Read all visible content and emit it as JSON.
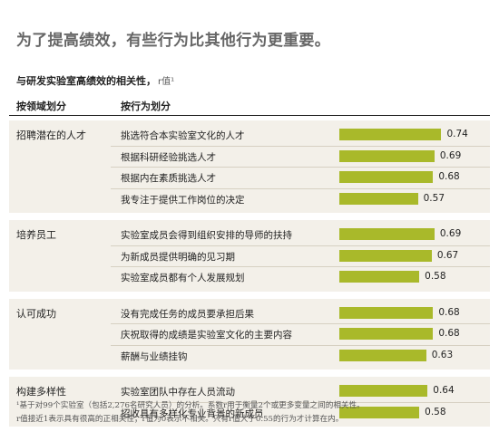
{
  "header": {
    "title": "为了提高绩效，有些行为比其他行为更重要。",
    "subtitle": "与研发实验室高绩效的相关性，",
    "subtitle_r": "r值¹"
  },
  "columns": {
    "domain_label": "按领域划分",
    "behavior_label": "按行为划分"
  },
  "chart_data": {
    "type": "bar",
    "title": "与研发实验室高绩效的相关性，r值",
    "xlim": [
      0,
      1
    ],
    "groups": [
      {
        "name": "招聘潜在的人才",
        "items": [
          {
            "label": "挑选符合本实验室文化的人才",
            "value": 0.74,
            "value_label": "0.74"
          },
          {
            "label": "根据科研经验挑选人才",
            "value": 0.69,
            "value_label": "0.69"
          },
          {
            "label": "根据内在素质挑选人才",
            "value": 0.68,
            "value_label": "0.68"
          },
          {
            "label": "我专注于提供工作岗位的决定",
            "value": 0.57,
            "value_label": "0.57"
          }
        ]
      },
      {
        "name": "培养员工",
        "items": [
          {
            "label": "实验室成员会得到组织安排的导师的扶持",
            "value": 0.69,
            "value_label": "0.69"
          },
          {
            "label": "为新成员提供明确的见习期",
            "value": 0.67,
            "value_label": "0.67"
          },
          {
            "label": "实验室成员都有个人发展规划",
            "value": 0.58,
            "value_label": "0.58"
          }
        ]
      },
      {
        "name": "认可成功",
        "items": [
          {
            "label": "没有完成任务的成员要承担后果",
            "value": 0.68,
            "value_label": "0.68"
          },
          {
            "label": "庆祝取得的成绩是实验室文化的主要内容",
            "value": 0.68,
            "value_label": "0.68"
          },
          {
            "label": "薪酬与业绩挂钩",
            "value": 0.63,
            "value_label": "0.63"
          }
        ]
      },
      {
        "name": "构建多样性",
        "items": [
          {
            "label": "实验室团队中存在人员流动",
            "value": 0.64,
            "value_label": "0.64"
          },
          {
            "label": "招收具有多样化专业背景的新成员",
            "value": 0.58,
            "value_label": "0.58"
          }
        ]
      }
    ],
    "bar_color": "#a9b92a",
    "group_background": "#f3f0e9"
  },
  "footnote": {
    "line1": "¹基于对99个实验室（包括2,276名研究人员）的分析。系数r用于衡量2个或更多变量之间的相关性。",
    "line2": "r值接近1表示具有很高的正相关性；r值为0表示不相关。只有r值大于0.55的行为才计算在内。"
  }
}
